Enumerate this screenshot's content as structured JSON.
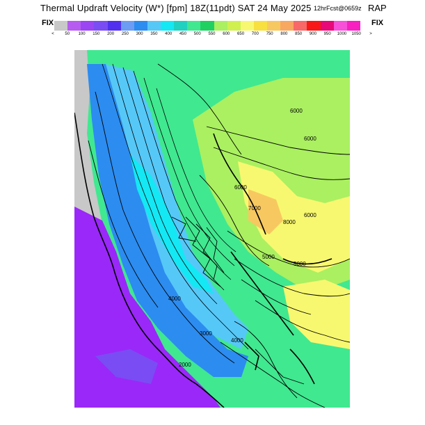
{
  "header": {
    "title_main": "Thermal Updraft Velocity (W*) [fpm] 18Z(11pdt) SAT 24 May 2025",
    "forecast_label": "12hrFcst@0659z",
    "model": "RAP",
    "fix_left": "FIX",
    "fix_right": "FIX"
  },
  "legend": {
    "colors": [
      "#c8c8c8",
      "#b65cf0",
      "#9a44f4",
      "#7a4cf4",
      "#5230f0",
      "#6c9cf4",
      "#2c8cf0",
      "#56c8f8",
      "#14e8f4",
      "#20d0c0",
      "#40e890",
      "#20d060",
      "#aaf060",
      "#d0f050",
      "#f8f870",
      "#f8e040",
      "#f8c860",
      "#f8a860",
      "#f86868",
      "#f81818",
      "#e80878",
      "#f850d8",
      "#f820c0"
    ],
    "tick_labels": [
      "<",
      "50",
      "100",
      "150",
      "200",
      "250",
      "300",
      "350",
      "400",
      "450",
      "500",
      "550",
      "600",
      "650",
      "700",
      "750",
      "800",
      "850",
      "900",
      "950",
      "1000",
      "1050",
      ">"
    ]
  },
  "map": {
    "palette": {
      "grey": "#c8c8c8",
      "violet": "#9a28f8",
      "purple": "#7a4cf4",
      "blue": "#2c8cf0",
      "light_blue": "#56c8f8",
      "cyan": "#14e8f4",
      "green": "#40e890",
      "lime": "#aaf060",
      "yellow": "#f8f870",
      "orange": "#f8c860"
    },
    "contour_labels": [
      "6000",
      "6000",
      "6000",
      "6000",
      "7000",
      "8000",
      "5000",
      "5000",
      "4000",
      "4000",
      "3000",
      "2000"
    ]
  }
}
